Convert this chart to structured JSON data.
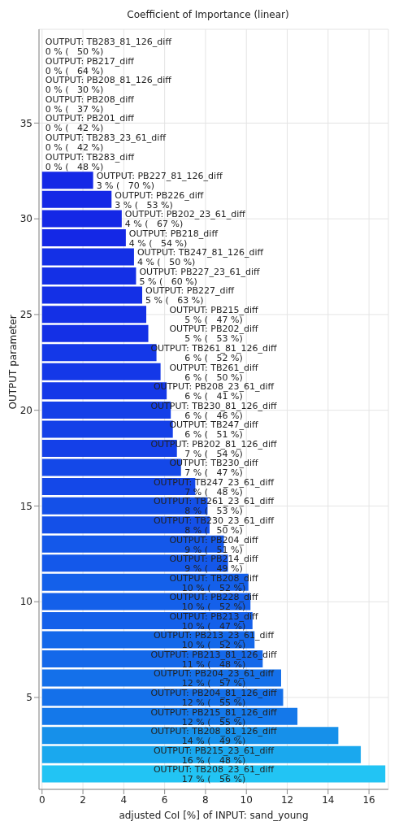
{
  "chart_data": {
    "type": "bar",
    "orientation": "horizontal",
    "title": "Coefficient of Importance (linear)",
    "xlabel": "adjusted CoI [%] of INPUT: sand_young",
    "ylabel": "OUTPUT parameter",
    "x": [
      39,
      38,
      37,
      36,
      35,
      34,
      33,
      32,
      31,
      30,
      29,
      28,
      27,
      26,
      25,
      24,
      23,
      22,
      21,
      20,
      19,
      18,
      17,
      16,
      15,
      14,
      13,
      12,
      11,
      10,
      9,
      8,
      7,
      6,
      5,
      4,
      3,
      2,
      1
    ],
    "values": [
      0,
      0,
      0,
      0,
      0,
      0,
      0,
      2.5,
      3.4,
      3.9,
      4.1,
      4.5,
      4.6,
      4.9,
      5.1,
      5.2,
      5.6,
      5.8,
      6.1,
      6.3,
      6.4,
      6.6,
      6.8,
      7.5,
      8.1,
      8.2,
      8.9,
      9.1,
      10.1,
      10.2,
      10.3,
      10.4,
      10.8,
      11.7,
      11.8,
      12.5,
      14.5,
      15.6,
      16.8
    ],
    "value_labels": [
      "OUTPUT: TB283_81_126_diff\n0 % (   50 %)",
      "OUTPUT: PB217_diff\n0 % (   64 %)",
      "OUTPUT: PB208_81_126_diff\n0 % (   30 %)",
      "OUTPUT: PB208_diff\n0 % (   37 %)",
      "OUTPUT: PB201_diff\n0 % (   42 %)",
      "OUTPUT: TB283_23_61_diff\n0 % (   42 %)",
      "OUTPUT: TB283_diff\n0 % (   48 %)",
      "OUTPUT: PB227_81_126_diff\n3 % (   70 %)",
      "OUTPUT: PB226_diff\n3 % (   53 %)",
      "OUTPUT: PB202_23_61_diff\n4 % (   67 %)",
      "OUTPUT: PB218_diff\n4 % (   54 %)",
      "OUTPUT: TB247_81_126_diff\n4 % (   50 %)",
      "OUTPUT: PB227_23_61_diff\n5 % (   60 %)",
      "OUTPUT: PB227_diff\n5 % (   63 %)",
      "OUTPUT: PB215_diff\n5 % (   47 %)",
      "OUTPUT: PB202_diff\n5 % (   53 %)",
      "OUTPUT: TB261_81_126_diff\n6 % (   52 %)",
      "OUTPUT: TB261_diff\n6 % (   50 %)",
      "OUTPUT: PB208_23_61_diff\n6 % (   41 %)",
      "OUTPUT: TB230_81_126_diff\n6 % (   46 %)",
      "OUTPUT: TB247_diff\n6 % (   51 %)",
      "OUTPUT: PB202_81_126_diff\n7 % (   54 %)",
      "OUTPUT: TB230_diff\n7 % (   47 %)",
      "OUTPUT: TB247_23_61_diff\n7 % (   48 %)",
      "OUTPUT: TB261_23_61_diff\n8 % (   53 %)",
      "OUTPUT: TB230_23_61_diff\n8 % (   50 %)",
      "OUTPUT: PB204_diff\n9 % (   51 %)",
      "OUTPUT: PB214_diff\n9 % (   49 %)",
      "OUTPUT: TB208_diff\n10 % (   52 %)",
      "OUTPUT: PB228_diff\n10 % (   52 %)",
      "OUTPUT: PB213_diff\n10 % (   47 %)",
      "OUTPUT: PB213_23_61_diff\n10 % (   52 %)",
      "OUTPUT: PB213_81_126_diff\n11 % (   48 %)",
      "OUTPUT: PB204_23_61_diff\n12 % (   57 %)",
      "OUTPUT: PB204_81_126_diff\n12 % (   55 %)",
      "OUTPUT: PB215_81_126_diff\n12 % (   55 %)",
      "OUTPUT: TB208_81_126_diff\n14 % (   49 %)",
      "OUTPUT: PB215_23_61_diff\n16 % (   48 %)",
      "OUTPUT: TB208_23_61_diff\n17 % (   56 %)"
    ],
    "colors": [
      "#1428e6",
      "#1428e6",
      "#1428e6",
      "#1428e6",
      "#1428e6",
      "#1428e6",
      "#1428e6",
      "#1428e6",
      "#1428e6",
      "#1428e6",
      "#1428e6",
      "#1430e6",
      "#1430e6",
      "#1430e6",
      "#1430e6",
      "#1430e6",
      "#1438e8",
      "#1438e8",
      "#1438e8",
      "#1440e8",
      "#1440e8",
      "#1440e8",
      "#1448e8",
      "#1448e8",
      "#1450e8",
      "#1450e8",
      "#1458ea",
      "#1458ea",
      "#1460ea",
      "#1460ea",
      "#1460ea",
      "#1468ea",
      "#1468ea",
      "#1470ea",
      "#1470ea",
      "#1478ea",
      "#1690ea",
      "#1aa8ee",
      "#22c4f4"
    ],
    "xlim": [
      -0.15,
      16.95
    ],
    "xticks": [
      0,
      2,
      4,
      6,
      8,
      10,
      12,
      14,
      16
    ],
    "ylim": [
      0.2,
      39.9
    ],
    "yticks": [
      5,
      10,
      15,
      20,
      25,
      30,
      35
    ],
    "grid": true
  }
}
